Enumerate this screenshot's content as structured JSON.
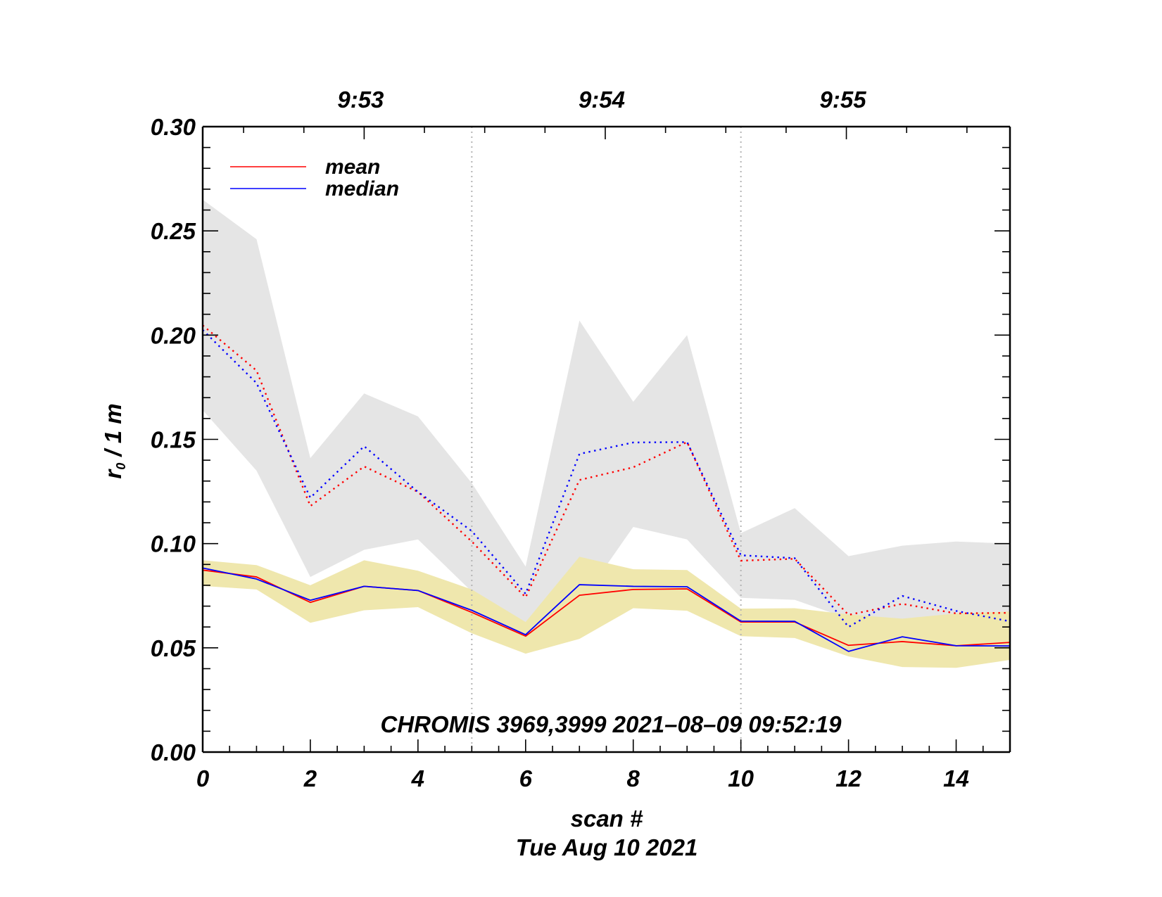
{
  "chart_data": {
    "type": "line",
    "title": "",
    "xlabel": "scan #",
    "xlabel2": "Tue Aug 10 2021",
    "ylabel_main": "r",
    "ylabel_sub": "0",
    "ylabel_rest": " / 1 m",
    "xlim": [
      0,
      15
    ],
    "ylim": [
      0.0,
      0.3
    ],
    "x_ticks": [
      0,
      2,
      4,
      6,
      8,
      10,
      12,
      14
    ],
    "x_tick_labels": [
      "0",
      "2",
      "4",
      "6",
      "8",
      "10",
      "12",
      "14"
    ],
    "y_ticks": [
      0.0,
      0.05,
      0.1,
      0.15,
      0.2,
      0.25,
      0.3
    ],
    "y_tick_labels": [
      "0.00",
      "0.05",
      "0.10",
      "0.15",
      "0.20",
      "0.25",
      "0.30"
    ],
    "top_axis": {
      "labels": [
        "9:53",
        "9:54",
        "9:55"
      ],
      "label_scan_positions": [
        3.0,
        7.48,
        11.96
      ]
    },
    "vertical_markers": [
      5,
      10
    ],
    "annotation": "CHROMIS 3969,3999 2021–08–09 09:52:19",
    "legend": {
      "placement": "top-left",
      "entries": [
        {
          "label": "mean",
          "color": "#ff0000"
        },
        {
          "label": "median",
          "color": "#0000ff"
        }
      ]
    },
    "x": [
      0,
      1,
      2,
      3,
      4,
      5,
      6,
      7,
      8,
      9,
      10,
      11,
      12,
      13,
      14,
      15
    ],
    "bands": [
      {
        "name": "spread-upper",
        "color": "#e5e5e5",
        "upper": [
          0.265,
          0.246,
          0.141,
          0.172,
          0.161,
          0.129,
          0.089,
          0.207,
          0.168,
          0.2,
          0.105,
          0.117,
          0.094,
          0.099,
          0.101,
          0.1
        ],
        "lower": [
          0.164,
          0.135,
          0.084,
          0.097,
          0.102,
          0.077,
          0.062,
          0.071,
          0.108,
          0.102,
          0.074,
          0.073,
          0.064,
          0.06,
          0.06,
          0.062
        ]
      },
      {
        "name": "spread-lower",
        "color": "#efe7ad",
        "upper": [
          0.092,
          0.0897,
          0.08,
          0.092,
          0.087,
          0.078,
          0.0624,
          0.0937,
          0.0877,
          0.0873,
          0.0688,
          0.069,
          0.066,
          0.064,
          0.0665,
          0.0674
        ],
        "lower": [
          0.0797,
          0.078,
          0.062,
          0.068,
          0.0695,
          0.057,
          0.0472,
          0.0543,
          0.069,
          0.0678,
          0.0556,
          0.0547,
          0.0459,
          0.0408,
          0.0404,
          0.0442
        ]
      }
    ],
    "series": [
      {
        "name": "mean (upper, dotted)",
        "color": "#ff0000",
        "style": "dotted",
        "values": [
          0.2047,
          0.183,
          0.118,
          0.137,
          0.1248,
          0.101,
          0.0742,
          0.1305,
          0.1366,
          0.1487,
          0.0918,
          0.0927,
          0.0658,
          0.0711,
          0.0665,
          0.0668
        ]
      },
      {
        "name": "median (upper, dotted)",
        "color": "#0000ff",
        "style": "dotted",
        "values": [
          0.2025,
          0.177,
          0.122,
          0.1467,
          0.1248,
          0.106,
          0.0759,
          0.143,
          0.1485,
          0.1487,
          0.0944,
          0.093,
          0.06,
          0.0749,
          0.0677,
          0.0627
        ]
      },
      {
        "name": "mean",
        "color": "#ff0000",
        "style": "solid",
        "values": [
          0.0873,
          0.084,
          0.0718,
          0.0795,
          0.0775,
          0.067,
          0.0556,
          0.0752,
          0.078,
          0.0783,
          0.0624,
          0.0624,
          0.0512,
          0.053,
          0.051,
          0.0526
        ]
      },
      {
        "name": "median",
        "color": "#0000ff",
        "style": "solid",
        "values": [
          0.0883,
          0.083,
          0.0728,
          0.0795,
          0.0775,
          0.068,
          0.0563,
          0.0803,
          0.0795,
          0.0793,
          0.0628,
          0.0627,
          0.0483,
          0.0553,
          0.051,
          0.0509
        ]
      }
    ],
    "grid": false
  }
}
